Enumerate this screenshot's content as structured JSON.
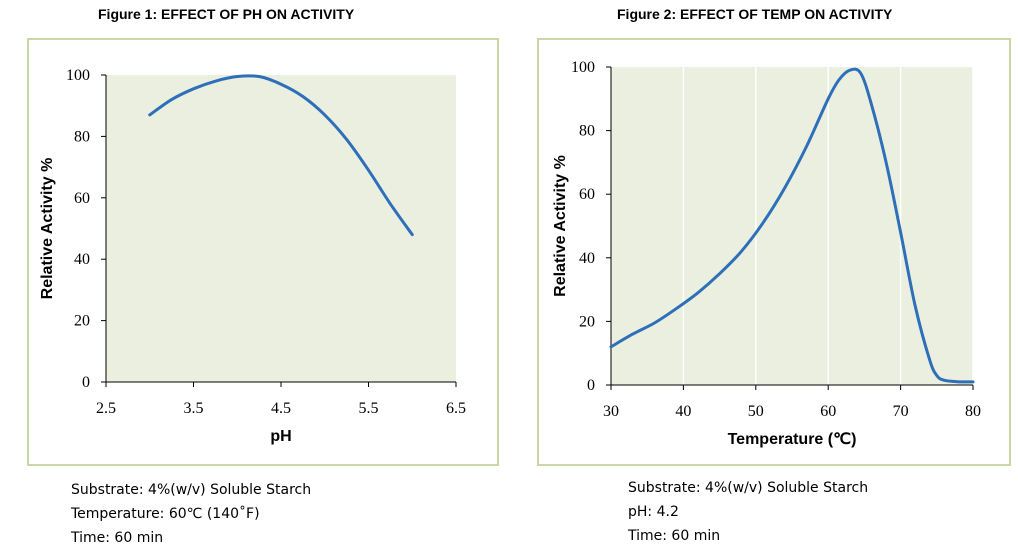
{
  "figure1": {
    "title": "Figure 1: EFFECT OF PH ON ACTIVITY",
    "captions": [
      "Substrate: 4%(w/v) Soluble Starch",
      "Temperature: 60℃ (140˚F)",
      "Time: 60 min"
    ]
  },
  "figure2": {
    "title": "Figure 2: EFFECT OF TEMP ON ACTIVITY",
    "captions": [
      "Substrate: 4%(w/v) Soluble Starch",
      "pH: 4.2",
      "Time: 60 min"
    ]
  },
  "colors": {
    "line": "#2e6fba",
    "plot_bg": "#ebefdf",
    "panel_border": "#c9d9a6"
  },
  "chart_data": [
    {
      "type": "line",
      "xlabel": "pH",
      "ylabel": "Relative Activity %",
      "xlim": [
        2.5,
        6.5
      ],
      "ylim": [
        0,
        100
      ],
      "xticks": [
        "2.5",
        "3.5",
        "4.5",
        "5.5",
        "6.5"
      ],
      "yticks": [
        "0",
        "20",
        "40",
        "60",
        "80",
        "100"
      ],
      "grid": false,
      "series": [
        {
          "x": [
            3.0,
            3.25,
            3.5,
            3.75,
            4.0,
            4.25,
            4.5,
            4.75,
            5.0,
            5.25,
            5.5,
            5.75,
            6.0
          ],
          "y": [
            87,
            92,
            95.5,
            98,
            99.5,
            99.5,
            97,
            93,
            87,
            79,
            69,
            58,
            48
          ]
        }
      ]
    },
    {
      "type": "line",
      "xlabel": "Temperature (℃)",
      "ylabel": "Relative  Activity %",
      "xlim": [
        30,
        80
      ],
      "ylim": [
        0,
        100
      ],
      "xticks": [
        "30",
        "40",
        "50",
        "60",
        "70",
        "80"
      ],
      "yticks": [
        "0",
        "20",
        "40",
        "60",
        "80",
        "100"
      ],
      "grid": true,
      "series": [
        {
          "x": [
            30,
            33,
            36,
            39,
            42,
            45,
            48,
            51,
            54,
            57,
            60,
            61.5,
            63,
            64.5,
            66,
            68,
            70,
            72,
            74,
            75,
            76,
            78,
            80
          ],
          "y": [
            12,
            16,
            19.5,
            24,
            29,
            35,
            42,
            51,
            62,
            75,
            90,
            96,
            99,
            98,
            88,
            70,
            48,
            25,
            8,
            3,
            1.5,
            1,
            1
          ]
        }
      ]
    }
  ]
}
